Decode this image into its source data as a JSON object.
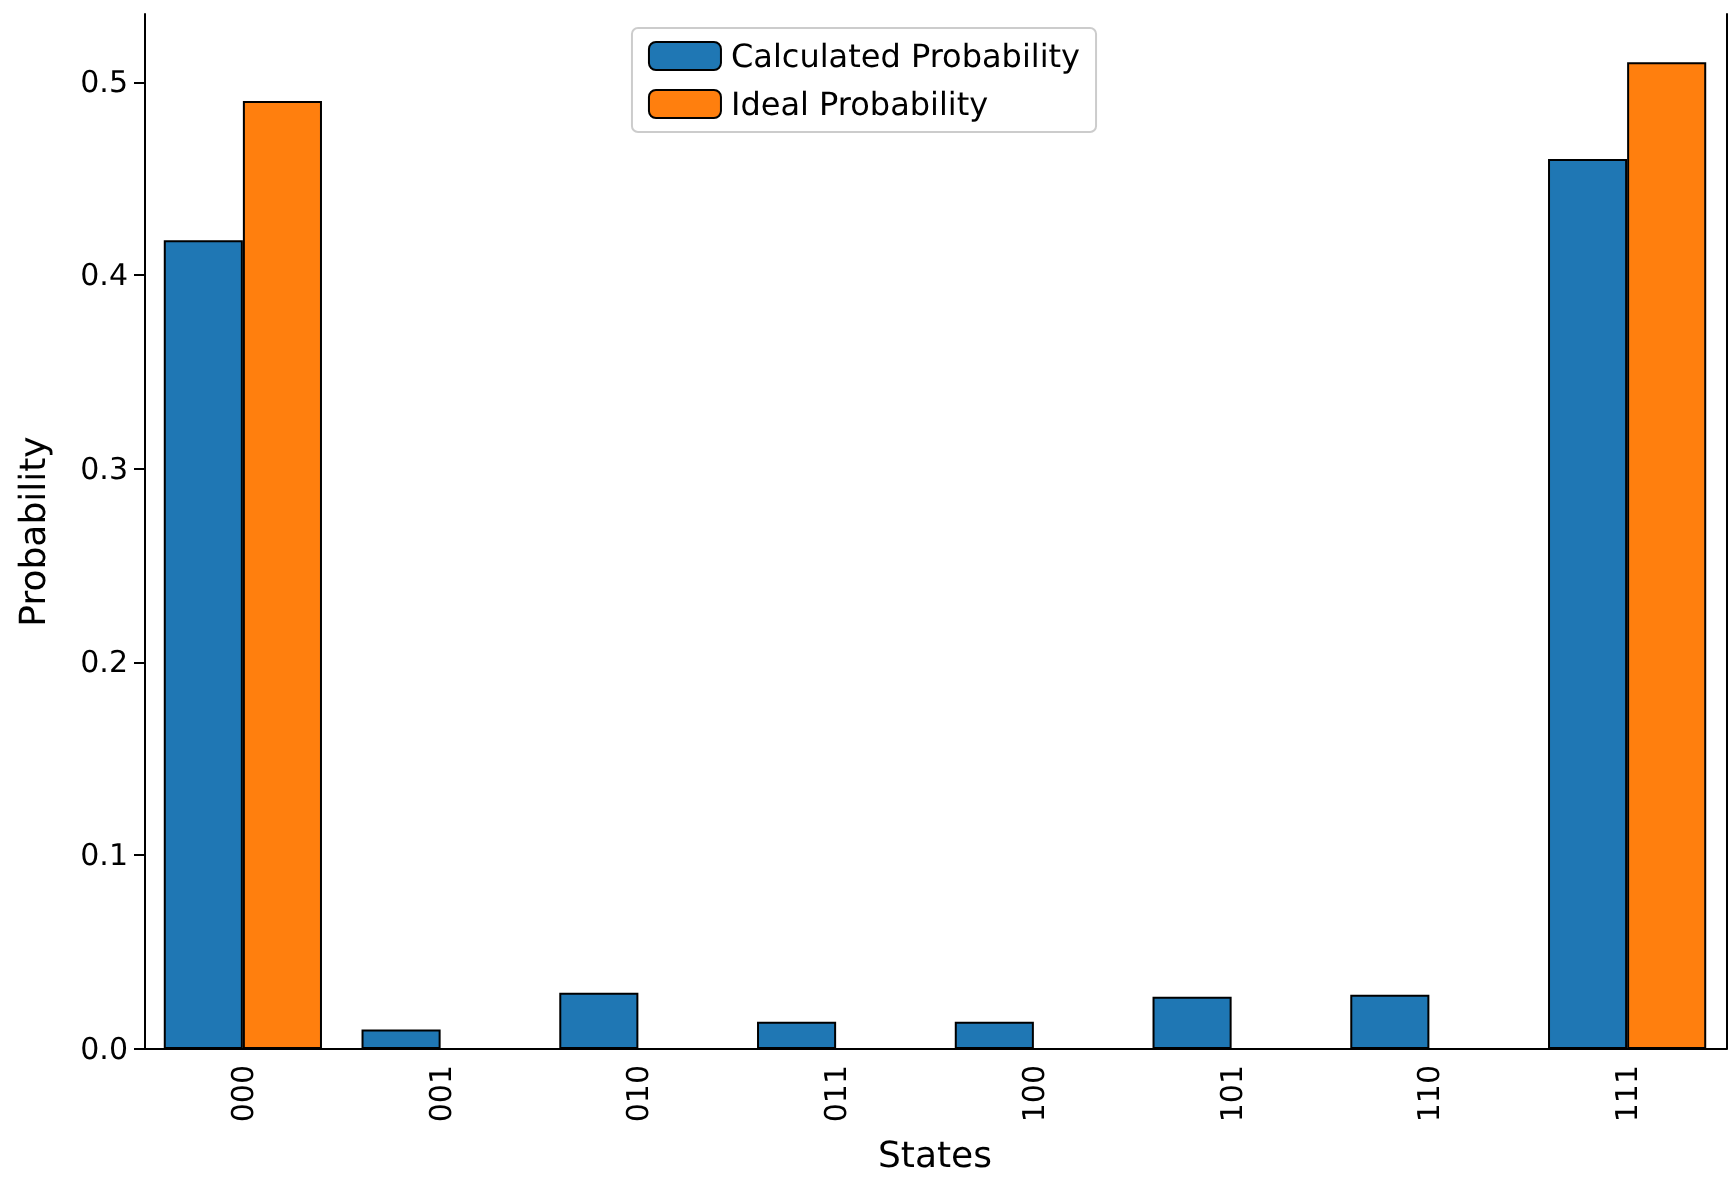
{
  "chart_data": {
    "type": "bar",
    "xlabel": "States",
    "ylabel": "Probability",
    "categories": [
      "000",
      "001",
      "010",
      "011",
      "100",
      "101",
      "110",
      "111"
    ],
    "series": [
      {
        "name": "Calculated Probability",
        "color": "#1f77b4",
        "values": [
          0.418,
          0.01,
          0.029,
          0.014,
          0.014,
          0.027,
          0.028,
          0.46
        ]
      },
      {
        "name": "Ideal Probability",
        "color": "#ff7f0e",
        "values": [
          0.49,
          0,
          0,
          0,
          0,
          0,
          0,
          0.51
        ]
      }
    ],
    "ylim": [
      0,
      0.535
    ],
    "yticks": [
      {
        "value": 0,
        "label": "0.0"
      },
      {
        "value": 0.1,
        "label": "0.1"
      },
      {
        "value": 0.2,
        "label": "0.2"
      },
      {
        "value": 0.3,
        "label": "0.3"
      },
      {
        "value": 0.4,
        "label": "0.4"
      },
      {
        "value": 0.5,
        "label": "0.5"
      }
    ],
    "legend": "top",
    "grid": false
  }
}
